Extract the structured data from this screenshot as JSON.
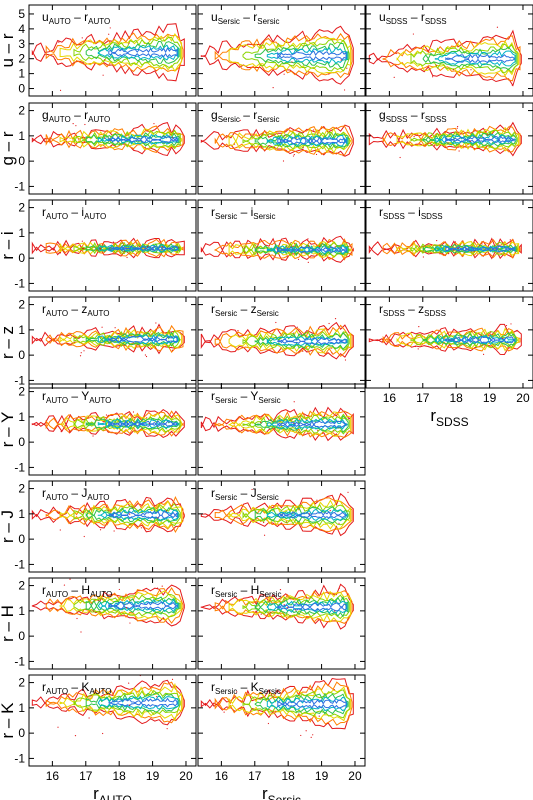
{
  "figure": {
    "rows": [
      {
        "ylabel": "u – r",
        "yticks": [
          0,
          1,
          2,
          3,
          4,
          5
        ],
        "ylim": [
          -0.5,
          5.6
        ]
      },
      {
        "ylabel": "g – r",
        "yticks": [
          -1,
          0,
          1,
          2
        ],
        "ylim": [
          -1.3,
          2.3
        ]
      },
      {
        "ylabel": "r – i",
        "yticks": [
          -1,
          0,
          1,
          2
        ],
        "ylim": [
          -1.3,
          2.3
        ]
      },
      {
        "ylabel": "r – z",
        "yticks": [
          -1,
          0,
          1,
          2
        ],
        "ylim": [
          -1.3,
          2.3
        ]
      },
      {
        "ylabel": "r – Y",
        "yticks": [
          -1,
          0,
          1,
          2
        ],
        "ylim": [
          -1.3,
          2.3
        ]
      },
      {
        "ylabel": "r – J",
        "yticks": [
          -1,
          0,
          1,
          2
        ],
        "ylim": [
          -1.3,
          2.3
        ]
      },
      {
        "ylabel": "r – H",
        "yticks": [
          -1,
          0,
          1,
          2
        ],
        "ylim": [
          -1.3,
          2.3
        ]
      },
      {
        "ylabel": "r – K",
        "yticks": [
          -1,
          0,
          1,
          2
        ],
        "ylim": [
          -1.3,
          2.3
        ]
      }
    ],
    "columns": [
      {
        "xlabel": {
          "base": "r",
          "sub": "AUTO"
        },
        "rows_present": 8
      },
      {
        "xlabel": {
          "base": "r",
          "sub": "Sersic"
        },
        "rows_present": 8
      },
      {
        "xlabel": {
          "base": "r",
          "sub": "SDSS"
        },
        "rows_present": 4
      }
    ],
    "xticks": [
      "16",
      "17",
      "18",
      "19",
      "20"
    ],
    "xlim": [
      15.3,
      20.3
    ],
    "contour_colors": [
      "#e31a1c",
      "#ff7f00",
      "#e6d800",
      "#8bd400",
      "#2ec24a",
      "#00b3c8",
      "#2b6fe0"
    ]
  },
  "panel_labels": [
    [
      {
        "a": "u",
        "as": "AUTO",
        "b": "r",
        "bs": "AUTO"
      },
      {
        "a": "g",
        "as": "AUTO",
        "b": "r",
        "bs": "AUTO"
      },
      {
        "a": "r",
        "as": "AUTO",
        "b": "i",
        "bs": "AUTO"
      },
      {
        "a": "r",
        "as": "AUTO",
        "b": "z",
        "bs": "AUTO"
      },
      {
        "a": "r",
        "as": "AUTO",
        "b": "Y",
        "bs": "AUTO"
      },
      {
        "a": "r",
        "as": "AUTO",
        "b": "J",
        "bs": "AUTO"
      },
      {
        "a": "r",
        "as": "AUTO",
        "b": "H",
        "bs": "AUTO"
      },
      {
        "a": "r",
        "as": "AUTO",
        "b": "K",
        "bs": "AUTO"
      }
    ],
    [
      {
        "a": "u",
        "as": "Sersic",
        "b": "r",
        "bs": "Sersic"
      },
      {
        "a": "g",
        "as": "Sersic",
        "b": "r",
        "bs": "Sersic"
      },
      {
        "a": "r",
        "as": "Sersic",
        "b": "i",
        "bs": "Sersic"
      },
      {
        "a": "r",
        "as": "Sersic",
        "b": "z",
        "bs": "Sersic"
      },
      {
        "a": "r",
        "as": "Sersic",
        "b": "Y",
        "bs": "Sersic"
      },
      {
        "a": "r",
        "as": "Sersic",
        "b": "J",
        "bs": "Sersic"
      },
      {
        "a": "r",
        "as": "Sersic",
        "b": "H",
        "bs": "Sersic"
      },
      {
        "a": "r",
        "as": "Sersic",
        "b": "K",
        "bs": "Sersic"
      }
    ],
    [
      {
        "a": "u",
        "as": "SDSS",
        "b": "r",
        "bs": "SDSS"
      },
      {
        "a": "g",
        "as": "SDSS",
        "b": "r",
        "bs": "SDSS"
      },
      {
        "a": "r",
        "as": "SDSS",
        "b": "i",
        "bs": "SDSS"
      },
      {
        "a": "r",
        "as": "SDSS",
        "b": "z",
        "bs": "SDSS"
      }
    ]
  ],
  "chart_data": {
    "type": "contour",
    "xlim": [
      15.3,
      20.3
    ],
    "xticks": [
      16,
      17,
      18,
      19,
      20
    ],
    "contour_levels": 7,
    "panels": [
      [
        {
          "center": 2.4,
          "w_faint": 1.7,
          "w_bright": 0.5
        },
        {
          "center": 0.85,
          "w_faint": 0.5,
          "w_bright": 0.15
        },
        {
          "center": 0.38,
          "w_faint": 0.24,
          "w_bright": 0.1
        },
        {
          "center": 0.62,
          "w_faint": 0.45,
          "w_bright": 0.15
        },
        {
          "center": 0.72,
          "w_faint": 0.45,
          "w_bright": 0.15
        },
        {
          "center": 0.95,
          "w_faint": 0.65,
          "w_bright": 0.15
        },
        {
          "center": 1.2,
          "w_faint": 0.75,
          "w_bright": 0.15
        },
        {
          "center": 1.2,
          "w_faint": 0.9,
          "w_bright": 0.15
        }
      ],
      [
        {
          "center": 2.2,
          "w_faint": 1.8,
          "w_bright": 0.6
        },
        {
          "center": 0.8,
          "w_faint": 0.55,
          "w_bright": 0.25
        },
        {
          "center": 0.33,
          "w_faint": 0.35,
          "w_bright": 0.15
        },
        {
          "center": 0.55,
          "w_faint": 0.6,
          "w_bright": 0.2
        },
        {
          "center": 0.7,
          "w_faint": 0.6,
          "w_bright": 0.15
        },
        {
          "center": 0.95,
          "w_faint": 0.7,
          "w_bright": 0.15
        },
        {
          "center": 1.15,
          "w_faint": 0.8,
          "w_bright": 0.15
        },
        {
          "center": 1.15,
          "w_faint": 0.95,
          "w_bright": 0.15
        }
      ],
      [
        {
          "center": 2.0,
          "w_faint": 1.6,
          "w_bright": 0.5
        },
        {
          "center": 0.85,
          "w_faint": 0.5,
          "w_bright": 0.15
        },
        {
          "center": 0.36,
          "w_faint": 0.25,
          "w_bright": 0.1
        },
        {
          "center": 0.6,
          "w_faint": 0.45,
          "w_bright": 0.15
        }
      ]
    ]
  }
}
